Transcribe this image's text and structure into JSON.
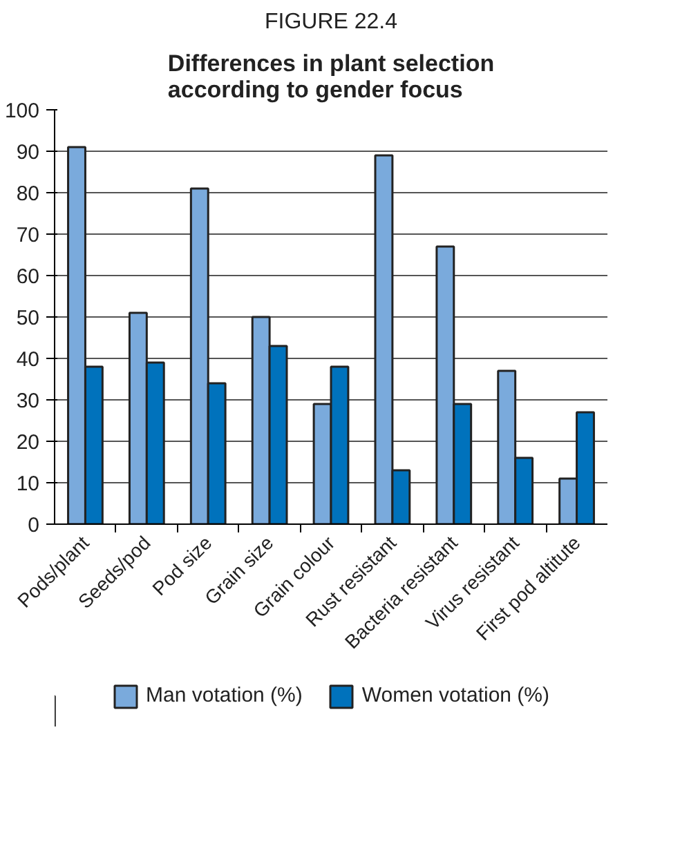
{
  "chart_data": {
    "type": "bar",
    "title": "FIGURE 22.4",
    "subtitle": "Differences in plant selection according to gender focus",
    "categories": [
      "Pods/plant",
      "Seeds/pod",
      "Pod size",
      "Grain size",
      "Grain colour",
      "Rust resistant",
      "Bacteria resistant",
      "Virus resistant",
      "First pod altitute"
    ],
    "series": [
      {
        "name": "Man votation (%)",
        "color": "#7aaadc",
        "values": [
          91,
          51,
          81,
          50,
          29,
          89,
          67,
          37,
          11
        ]
      },
      {
        "name": "Women votation (%)",
        "color": "#0072bc",
        "values": [
          38,
          39,
          34,
          43,
          38,
          13,
          29,
          16,
          27
        ]
      }
    ],
    "ylim": [
      0,
      100
    ],
    "yticks": [
      0,
      10,
      20,
      30,
      40,
      50,
      60,
      70,
      80,
      90,
      100
    ],
    "grid": "y",
    "legend": "bottom"
  }
}
